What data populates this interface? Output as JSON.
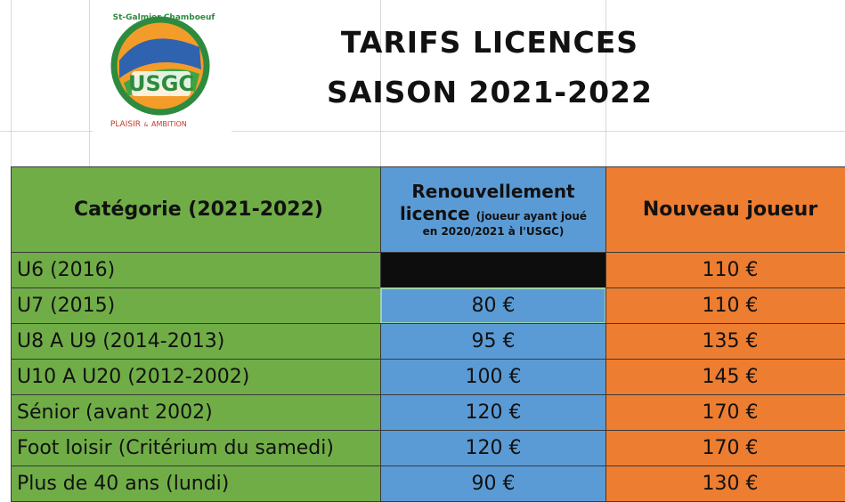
{
  "logo": {
    "arc_text": "St-Galmier Chamboeuf",
    "initials": "USGC",
    "motto_left": "PLAISIR",
    "motto_mid": "&",
    "motto_right": "AMBITION"
  },
  "title": [
    "TARIFS LICENCES",
    "SAISON 2021-2022"
  ],
  "table": {
    "header": {
      "category": "Catégorie (2021-2022)",
      "renewal_line1": "Renouvellement",
      "renewal_line2": "licence",
      "renewal_note1": "(joueur ayant joué",
      "renewal_note2": "en 2020/2021 à l'USGC)",
      "new_player": "Nouveau joueur"
    },
    "rows": [
      [
        "U6 (2016)",
        null,
        "110 €"
      ],
      [
        "U7 (2015)",
        "80 €",
        "110 €"
      ],
      [
        "U8 A U9 (2014-2013)",
        "95 €",
        "135 €"
      ],
      [
        "U10 A U20 (2012-2002)",
        "100 €",
        "145 €"
      ],
      [
        "Sénior (avant 2002)",
        "120 €",
        "170 €"
      ],
      [
        "Foot loisir (Critérium du samedi)",
        "120 €",
        "170 €"
      ],
      [
        "Plus de 40 ans (lundi)",
        "90 €",
        "130 €"
      ]
    ]
  }
}
